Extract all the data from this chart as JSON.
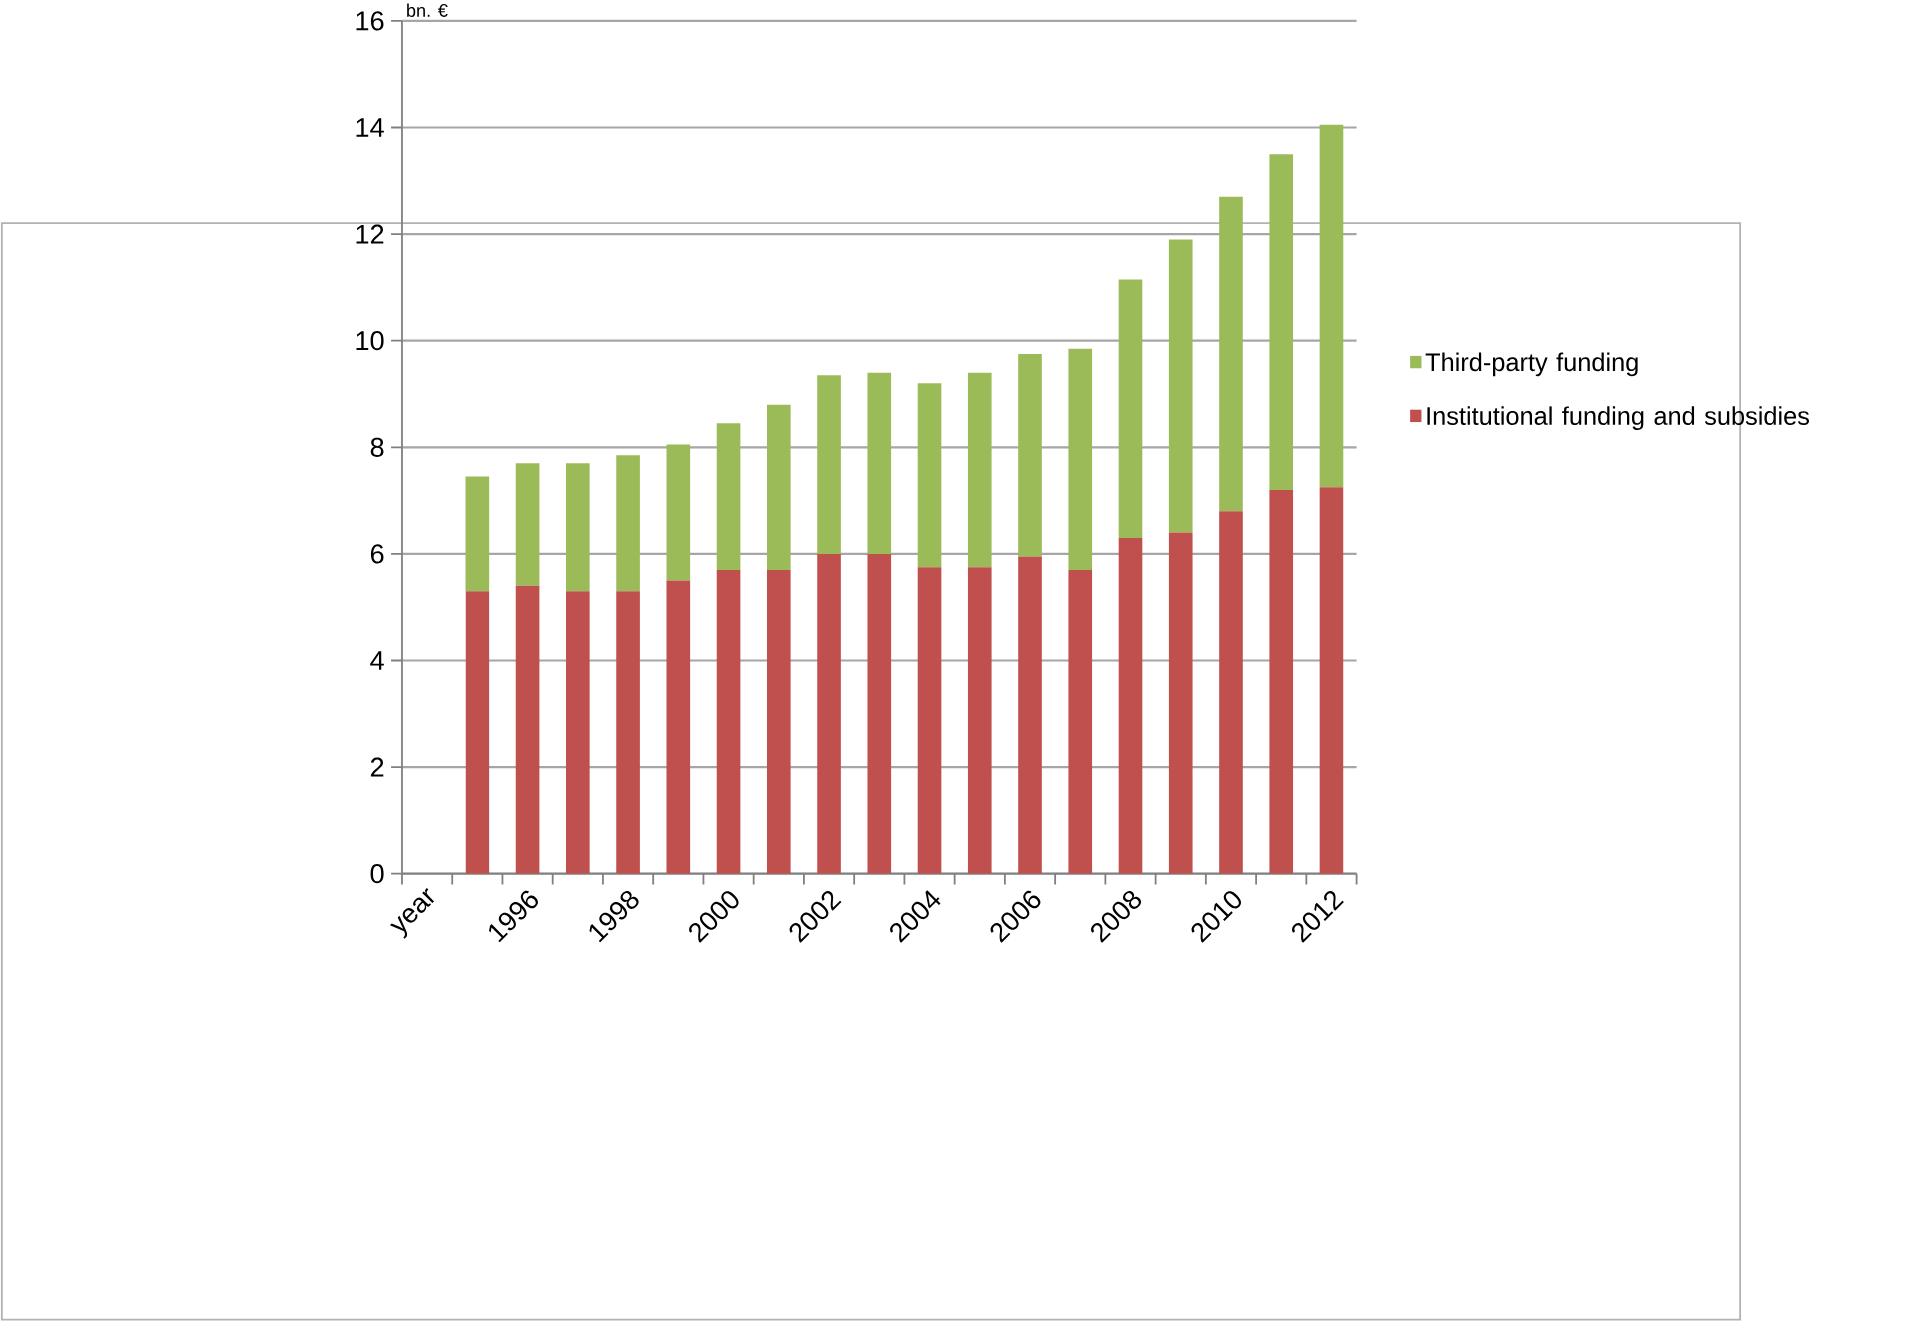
{
  "chart_data": {
    "type": "bar",
    "stacked": true,
    "ylabel": "bn. €",
    "categories": [
      "year",
      null,
      "1996",
      null,
      "1998",
      null,
      "2000",
      null,
      "2002",
      null,
      "2004",
      null,
      "2006",
      null,
      "2008",
      null,
      "2010",
      null,
      "2012"
    ],
    "series": [
      {
        "name": "Institutional funding and subsidies",
        "color": "#c0504d",
        "values": [
          null,
          5.3,
          5.4,
          5.3,
          5.3,
          5.5,
          5.7,
          5.7,
          6.0,
          6.0,
          5.75,
          5.75,
          5.95,
          5.7,
          6.3,
          6.4,
          6.8,
          7.2,
          7.25
        ]
      },
      {
        "name": "Third-party funding",
        "color": "#9bbb59",
        "values": [
          null,
          2.15,
          2.3,
          2.4,
          2.55,
          2.55,
          2.75,
          3.1,
          3.35,
          3.4,
          3.45,
          3.65,
          3.8,
          4.15,
          4.85,
          5.5,
          5.9,
          6.3,
          6.8
        ]
      }
    ],
    "ylim": [
      0,
      16
    ],
    "yticks": [
      0,
      2,
      4,
      6,
      8,
      10,
      12,
      14,
      16
    ],
    "grid": "y",
    "legend": "right"
  }
}
